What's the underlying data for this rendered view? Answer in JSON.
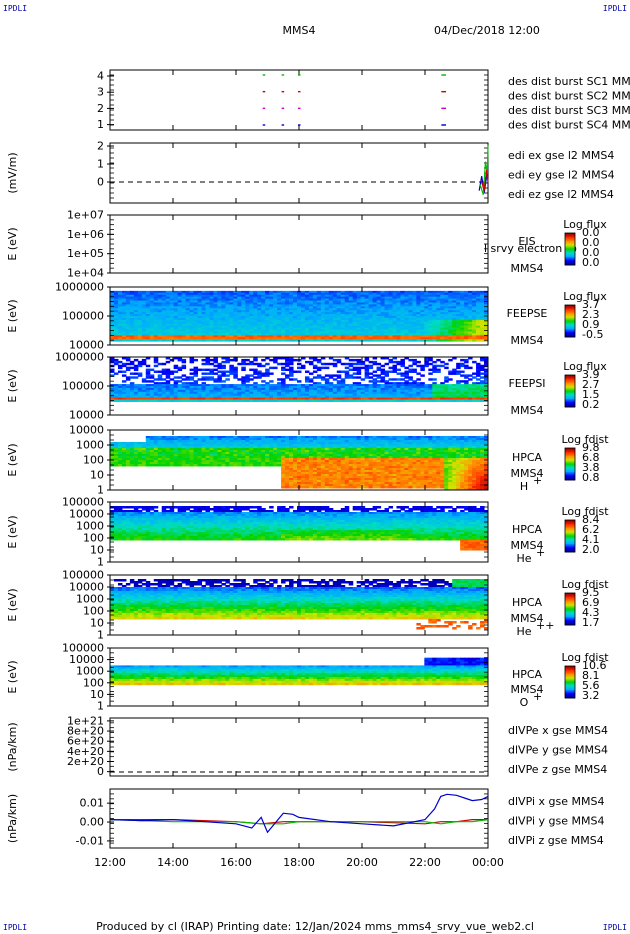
{
  "corners": {
    "tl": "IPDLI",
    "tr": "IPDLI",
    "bl": "IPDLI",
    "br": "IPDLI"
  },
  "header": {
    "spacecraft": "MMS4",
    "datetime": "04/Dec/2018 12:00"
  },
  "footer": "Produced by cl (IRAP)   Printing date: 12/Jan/2024   mms_mms4_srvy_vue_web2.cl",
  "colors": {
    "red": "#cc0000",
    "green": "#00bb00",
    "blue": "#0000cc",
    "magenta": "#cc00cc"
  },
  "chart_data": {
    "type": "multi-panel time series / spectrogram",
    "time_axis": {
      "ticks": [
        "12:00",
        "14:00",
        "16:00",
        "18:00",
        "20:00",
        "22:00",
        "00:00"
      ],
      "range_hours": [
        12,
        24
      ]
    },
    "panels": [
      {
        "id": "burst",
        "type": "scatter",
        "ylim": [
          0.7,
          4.3
        ],
        "yticks": [
          "4",
          "3",
          "2",
          "1"
        ],
        "legend": [
          {
            "text": "des dist burst SC1 MMS1",
            "color": "#0000cc"
          },
          {
            "text": "des dist burst SC2 MMS2",
            "color": "#cc00cc"
          },
          {
            "text": "des dist burst SC3 MMS3",
            "color": "#cc0000"
          },
          {
            "text": "des dist burst SC4 MMS4",
            "color": "#00bb00"
          }
        ],
        "series": [
          {
            "y": 4,
            "color": "#00bb00",
            "x": [
              16.88,
              17.48,
              18.0,
              22.55,
              22.62
            ]
          },
          {
            "y": 3,
            "color": "#cc0000",
            "x": [
              16.88,
              17.48,
              18.0,
              22.55,
              22.62
            ]
          },
          {
            "y": 2,
            "color": "#cc00cc",
            "x": [
              16.88,
              17.48,
              18.0,
              22.55,
              22.62
            ]
          },
          {
            "y": 1,
            "color": "#0000cc",
            "x": [
              16.88,
              17.48,
              18.0,
              22.55,
              22.62
            ]
          }
        ]
      },
      {
        "id": "edi",
        "type": "line",
        "ylabel": "(mV/m)",
        "ylim": [
          -0.8,
          2.1
        ],
        "yticks": [
          "2",
          "1",
          "0"
        ],
        "zero_line": true,
        "legend": [
          {
            "text": "edi ex gse l2 MMS4",
            "color": "#cc0000"
          },
          {
            "text": "edi ey gse l2 MMS4",
            "color": "#00bb00"
          },
          {
            "text": "edi ez gse l2 MMS4",
            "color": "#0000cc"
          }
        ],
        "series": [
          {
            "color": "#0000cc",
            "x": [
              23.72,
              23.8,
              23.88,
              23.95,
              24.0
            ],
            "y": [
              -0.2,
              0.5,
              -0.3,
              0.4,
              0.9
            ]
          },
          {
            "color": "#00bb00",
            "x": [
              23.75,
              23.85,
              23.92,
              23.98,
              24.0
            ],
            "y": [
              0.1,
              -0.4,
              1.2,
              0.6,
              2.0
            ]
          },
          {
            "color": "#cc0000",
            "x": [
              23.78,
              23.88,
              23.96,
              24.0
            ],
            "y": [
              0.3,
              -0.2,
              0.8,
              0.2
            ]
          }
        ]
      },
      {
        "id": "eis",
        "type": "heatmap",
        "ylabel": "E (eV)",
        "yticks": [
          "1e+07",
          "1e+06",
          "1e+05",
          "1e+04"
        ],
        "instrument": "EIS",
        "spacecraft": "MMS4",
        "note": "l srvy electron to",
        "colorbar": {
          "title": "Log flux",
          "ticks": [
            "0.0",
            "0.0",
            "0.0",
            "0.0"
          ]
        }
      },
      {
        "id": "feepse",
        "type": "heatmap",
        "ylabel": "E (eV)",
        "yticks": [
          "1000000",
          "100000",
          "10000"
        ],
        "instrument": "FEEPSE",
        "spacecraft": "MMS4",
        "colorbar": {
          "title": "Log flux",
          "ticks": [
            "3.7",
            "2.3",
            "0.9",
            "-0.5"
          ]
        }
      },
      {
        "id": "feepsi",
        "type": "heatmap",
        "ylabel": "E (eV)",
        "yticks": [
          "1000000",
          "100000",
          "10000"
        ],
        "instrument": "FEEPSI",
        "spacecraft": "MMS4",
        "colorbar": {
          "title": "Log flux",
          "ticks": [
            "3.9",
            "2.7",
            "1.5",
            "0.2"
          ]
        }
      },
      {
        "id": "hpca_h",
        "type": "heatmap",
        "ylabel": "E (eV)",
        "yticks": [
          "10000",
          "1000",
          "100",
          "10",
          "1"
        ],
        "instrument": "HPCA",
        "spacecraft": "MMS4",
        "species": "H",
        "species_sup": "+",
        "colorbar": {
          "title": "Log fdist",
          "ticks": [
            "9.8",
            "6.8",
            "3.8",
            "0.8"
          ]
        }
      },
      {
        "id": "hpca_he1",
        "type": "heatmap",
        "ylabel": "E (eV)",
        "yticks": [
          "100000",
          "10000",
          "1000",
          "100",
          "10",
          "1"
        ],
        "instrument": "HPCA",
        "spacecraft": "MMS4",
        "species": "He",
        "species_sup": "+",
        "colorbar": {
          "title": "Log fdist",
          "ticks": [
            "8.4",
            "6.2",
            "4.1",
            "2.0"
          ]
        }
      },
      {
        "id": "hpca_he2",
        "type": "heatmap",
        "ylabel": "E (eV)",
        "yticks": [
          "100000",
          "10000",
          "1000",
          "100",
          "10",
          "1"
        ],
        "instrument": "HPCA",
        "spacecraft": "MMS4",
        "species": "He",
        "species_sup": "++",
        "colorbar": {
          "title": "Log fdist",
          "ticks": [
            "9.5",
            "6.9",
            "4.3",
            "1.7"
          ]
        }
      },
      {
        "id": "hpca_o",
        "type": "heatmap",
        "ylabel": "E (eV)",
        "yticks": [
          "100000",
          "10000",
          "1000",
          "100",
          "10",
          "1"
        ],
        "instrument": "HPCA",
        "spacecraft": "MMS4",
        "species": "O",
        "species_sup": "+",
        "colorbar": {
          "title": "Log fdist",
          "ticks": [
            "10.6",
            "8.1",
            "5.6",
            "3.2"
          ]
        }
      },
      {
        "id": "divpe",
        "type": "line",
        "ylabel": "(nPa/km)",
        "ylim": [
          -2e+20,
          1.05e+21
        ],
        "yticks": [
          "1e+21",
          "8e+20",
          "6e+20",
          "4e+20",
          "2e+20",
          "0"
        ],
        "zero_line": true,
        "legend": [
          {
            "text": "dlVPe x gse MMS4",
            "color": "#cc0000"
          },
          {
            "text": "dlVPe y gse MMS4",
            "color": "#00bb00"
          },
          {
            "text": "dlVPe z gse MMS4",
            "color": "#0000cc"
          }
        ],
        "series": []
      },
      {
        "id": "divpi",
        "type": "line",
        "ylabel": "(nPa/km)",
        "ylim": [
          -0.0135,
          0.0145
        ],
        "yticks": [
          "0.01",
          "0.00",
          "-0.01"
        ],
        "legend": [
          {
            "text": "dlVPi x gse MMS4",
            "color": "#cc0000"
          },
          {
            "text": "dlVPi y gse MMS4",
            "color": "#00bb00"
          },
          {
            "text": "dlVPi z gse MMS4",
            "color": "#0000cc"
          }
        ],
        "series": [
          {
            "color": "#cc0000",
            "x": [
              12.0,
              14.0,
              16.0,
              16.8,
              17.5,
              18.0,
              20.0,
              22.0,
              22.5,
              23.0,
              23.5,
              24.0
            ],
            "y": [
              0.0,
              0.0,
              -0.001,
              -0.002,
              -0.001,
              -0.001,
              -0.001,
              -0.002,
              -0.001,
              -0.001,
              0.0,
              0.0
            ]
          },
          {
            "color": "#00bb00",
            "x": [
              12.0,
              14.0,
              16.0,
              16.8,
              17.5,
              18.0,
              20.0,
              22.0,
              22.5,
              23.0,
              23.5,
              24.0
            ],
            "y": [
              0.0,
              -0.001,
              -0.001,
              -0.002,
              -0.002,
              -0.001,
              -0.001,
              -0.001,
              -0.002,
              -0.001,
              -0.001,
              0.0
            ]
          },
          {
            "color": "#0000cc",
            "x": [
              12.0,
              13.0,
              14.0,
              15.0,
              16.0,
              16.5,
              16.8,
              17.0,
              17.5,
              17.8,
              18.0,
              19.0,
              20.0,
              21.0,
              22.0,
              22.3,
              22.5,
              22.7,
              23.0,
              23.3,
              23.5,
              23.8,
              24.0
            ],
            "y": [
              0.0,
              -0.0005,
              0.0,
              -0.001,
              -0.002,
              -0.004,
              0.001,
              -0.006,
              0.003,
              0.0025,
              0.001,
              -0.001,
              -0.002,
              -0.003,
              0.0,
              0.005,
              0.011,
              0.012,
              0.0115,
              0.01,
              0.009,
              0.0095,
              0.011
            ]
          }
        ]
      }
    ]
  }
}
